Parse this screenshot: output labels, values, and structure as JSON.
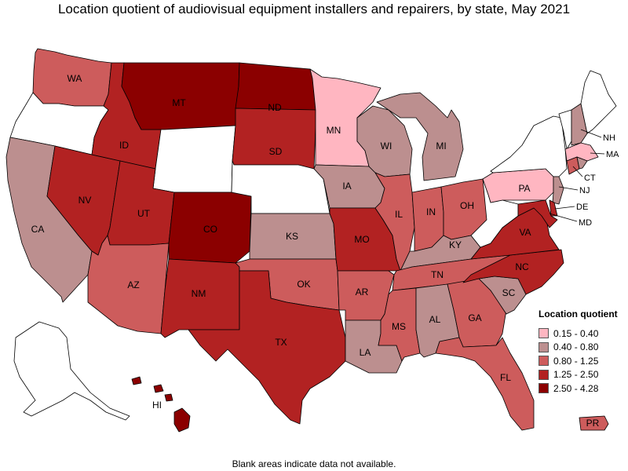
{
  "title": "Location quotient of audiovisual equipment installers and repairers, by state, May 2021",
  "footnote": "Blank areas indicate data not available.",
  "legend": {
    "title": "Location quotient",
    "classes": [
      {
        "label": "0.15 - 0.40",
        "color": "#ffb6c1"
      },
      {
        "label": "0.40 - 0.80",
        "color": "#bc8f8f"
      },
      {
        "label": "0.80 - 1.25",
        "color": "#cd5c5c"
      },
      {
        "label": "1.25 - 2.50",
        "color": "#b22222"
      },
      {
        "label": "2.50 - 4.28",
        "color": "#8b0000"
      }
    ]
  },
  "no_data_color": "#ffffff",
  "states": {
    "WA": {
      "label": "WA",
      "class": 2
    },
    "OR": {
      "label": "",
      "class": null
    },
    "CA": {
      "label": "CA",
      "class": 1
    },
    "NV": {
      "label": "NV",
      "class": 3
    },
    "ID": {
      "label": "ID",
      "class": 3
    },
    "MT": {
      "label": "MT",
      "class": 4
    },
    "WY": {
      "label": "",
      "class": null
    },
    "UT": {
      "label": "UT",
      "class": 3
    },
    "AZ": {
      "label": "AZ",
      "class": 2
    },
    "CO": {
      "label": "CO",
      "class": 4
    },
    "NM": {
      "label": "NM",
      "class": 3
    },
    "ND": {
      "label": "ND",
      "class": 4
    },
    "SD": {
      "label": "SD",
      "class": 3
    },
    "NE": {
      "label": "",
      "class": null
    },
    "KS": {
      "label": "KS",
      "class": 1
    },
    "OK": {
      "label": "OK",
      "class": 2
    },
    "TX": {
      "label": "TX",
      "class": 3
    },
    "MN": {
      "label": "MN",
      "class": 0
    },
    "IA": {
      "label": "IA",
      "class": 1
    },
    "MO": {
      "label": "MO",
      "class": 3
    },
    "AR": {
      "label": "AR",
      "class": 2
    },
    "LA": {
      "label": "LA",
      "class": 1
    },
    "WI": {
      "label": "WI",
      "class": 1
    },
    "IL": {
      "label": "IL",
      "class": 2
    },
    "MI": {
      "label": "MI",
      "class": 1
    },
    "IN": {
      "label": "IN",
      "class": 2
    },
    "OH": {
      "label": "OH",
      "class": 2
    },
    "KY": {
      "label": "KY",
      "class": 1
    },
    "TN": {
      "label": "TN",
      "class": 2
    },
    "MS": {
      "label": "MS",
      "class": 2
    },
    "AL": {
      "label": "AL",
      "class": 1
    },
    "GA": {
      "label": "GA",
      "class": 2
    },
    "FL": {
      "label": "FL",
      "class": 2
    },
    "SC": {
      "label": "SC",
      "class": 1
    },
    "NC": {
      "label": "NC",
      "class": 3
    },
    "VA": {
      "label": "VA",
      "class": 3
    },
    "WV": {
      "label": "",
      "class": null
    },
    "PA": {
      "label": "PA",
      "class": 0
    },
    "NY": {
      "label": "",
      "class": null
    },
    "VT": {
      "label": "",
      "class": null
    },
    "NH": {
      "label": "NH",
      "class": 1
    },
    "ME": {
      "label": "",
      "class": null
    },
    "MA": {
      "label": "MA",
      "class": 0
    },
    "CT": {
      "label": "CT",
      "class": 2
    },
    "RI": {
      "label": "",
      "class": 1
    },
    "NJ": {
      "label": "NJ",
      "class": 1
    },
    "DE": {
      "label": "DE",
      "class": 3
    },
    "MD": {
      "label": "MD",
      "class": 3
    },
    "AK": {
      "label": "",
      "class": null
    },
    "HI": {
      "label": "HI",
      "class": 4
    },
    "PR": {
      "label": "PR",
      "class": 2
    }
  }
}
